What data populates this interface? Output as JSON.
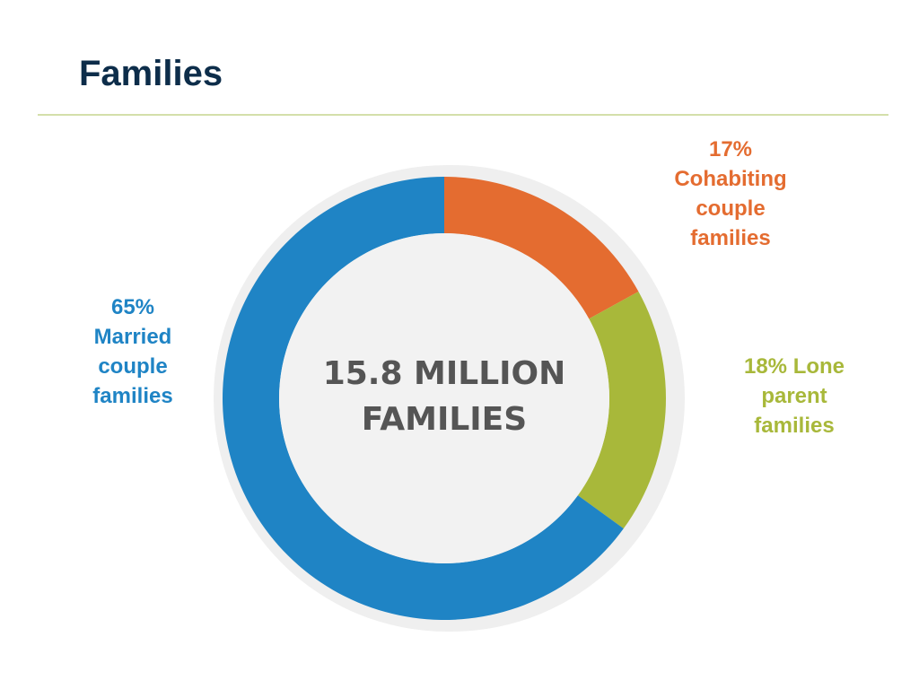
{
  "slide": {
    "title": "Families"
  },
  "colors": {
    "title": "#0d2d4a",
    "rule": "#d4dfaa",
    "ring_background": "#efefef",
    "inner_disc": "#f2f2f2",
    "center_text": "#555555"
  },
  "chart_data": {
    "type": "pie",
    "variant": "donut",
    "center_text_lines": [
      "15.8 MILLION",
      "FAMILIES"
    ],
    "slices": [
      {
        "value": 17,
        "color": "#e46c30",
        "label_lines": [
          "17%",
          "Cohabiting",
          "couple",
          "families"
        ]
      },
      {
        "value": 18,
        "color": "#a8b83a",
        "label_lines": [
          "18% Lone",
          "parent",
          "families"
        ]
      },
      {
        "value": 65,
        "color": "#1f84c5",
        "label_lines": [
          "65%",
          "Married",
          "couple",
          "families"
        ]
      }
    ]
  }
}
